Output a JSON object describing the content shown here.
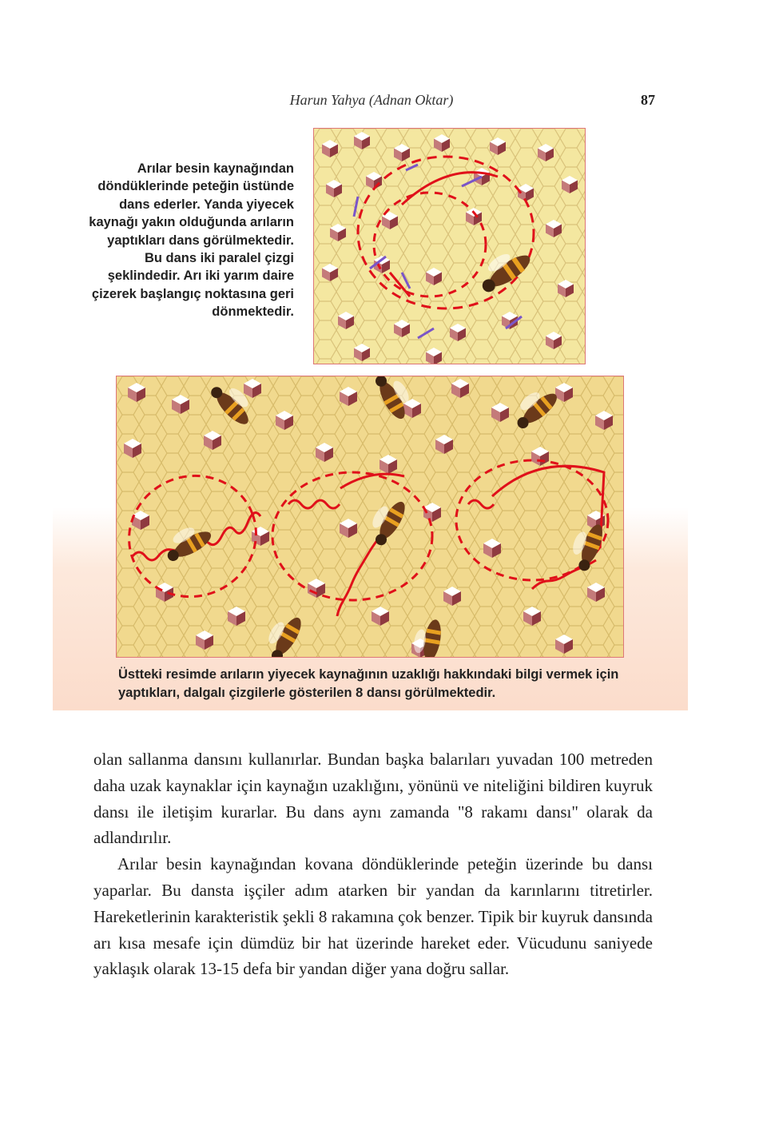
{
  "header": {
    "title": "Harun Yahya (Adnan Oktar)",
    "page_number": "87"
  },
  "figure_top": {
    "caption": "Arılar besin kaynağından döndüklerinde peteğin üstünde dans ederler. Yanda yiyecek kaynağı yakın olduğunda arıların yaptıkları dans görülmektedir. Bu dans iki paralel çizgi şeklindedir. Arı iki yarım daire çizerek başlangıç noktasına geri dönmektedir."
  },
  "figure_bottom": {
    "caption": "Üstteki resimde arıların yiyecek kaynağının uzaklığı hakkındaki bilgi vermek için yaptıkları, dalgalı çizgilerle gösterilen 8 dansı görülmektedir."
  },
  "body": {
    "paragraphs": [
      "olan sallanma dansını kullanırlar. Bundan başka balarıları yuvadan 100 metreden daha uzak kaynaklar için kaynağın uzaklığını, yönünü ve niteliğini bildiren kuyruk dansı ile iletişim kurarlar. Bu dans aynı zamanda \"8 rakamı dansı\" olarak da adlandırılır.",
      "Arılar besin kaynağından kovana döndüklerinde peteğin üzerinde bu dansı yaparlar. Bu dansta işçiler adım atarken bir yandan da karınlarını titretirler. Hareketlerinin karakteristik şekli 8 rakamına çok benzer. Tipik bir kuyruk dansında arı kısa mesafe için dümdüz bir hat üzerinde hareket eder. Vücudunu saniyede yaklaşık olarak 13-15 defa bir yandan diğer yana doğru sallar."
    ]
  },
  "colors": {
    "honeycomb": "#f4e7a0",
    "cell_line": "#d9c27a",
    "dance_path": "#e0101a",
    "arrow": "#7a55c8",
    "panel": "#fbdccb"
  }
}
